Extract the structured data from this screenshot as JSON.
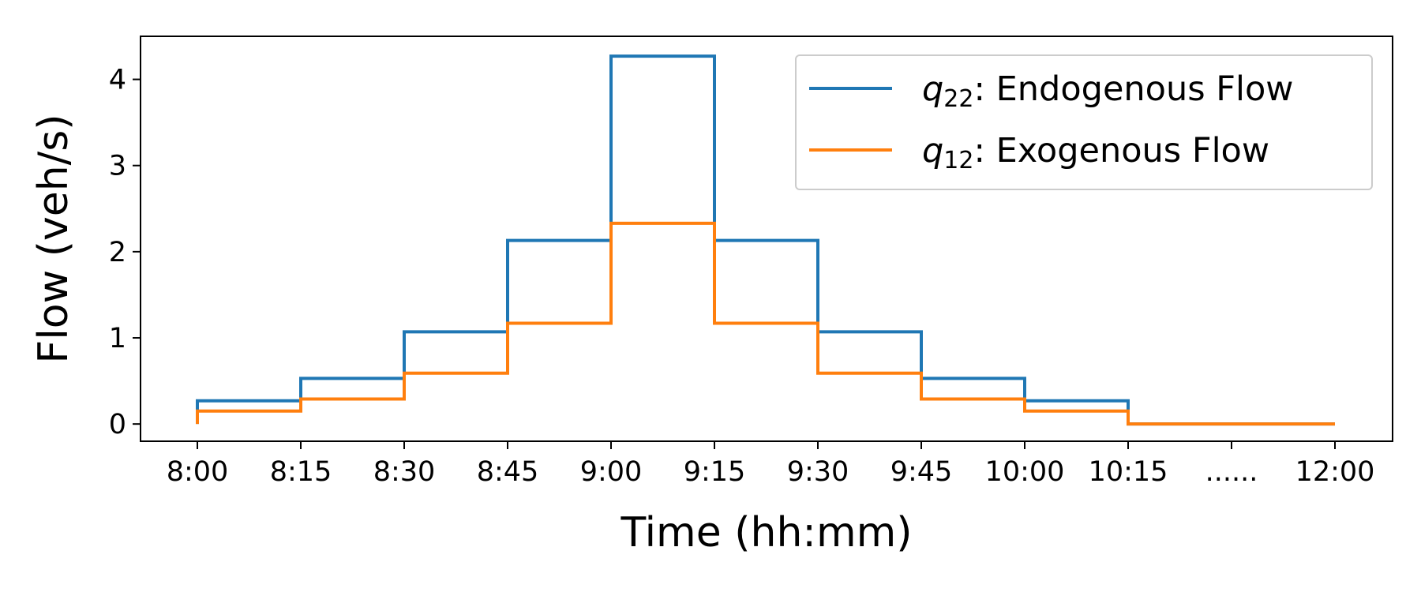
{
  "chart_data": {
    "type": "line",
    "step": "post",
    "xlabel": "Time (hh:mm)",
    "ylabel": "Flow (veh/s)",
    "ylim": [
      -0.2,
      4.5
    ],
    "yticks": [
      0,
      1,
      2,
      3,
      4
    ],
    "x_tick_labels": [
      "8:00",
      "8:15",
      "8:30",
      "8:45",
      "9:00",
      "9:15",
      "9:30",
      "9:45",
      "10:00",
      "10:15",
      "......",
      "12:00"
    ],
    "legend_position": "upper right",
    "grid": false,
    "series": [
      {
        "name": "q22: Endogenous Flow",
        "legend_symbol": "q",
        "legend_subscript": "22",
        "legend_text": ": Endogenous Flow",
        "color": "#1f77b4",
        "values": [
          0.27,
          0.53,
          1.07,
          2.13,
          4.27,
          2.13,
          1.07,
          0.53,
          0.27,
          0,
          0
        ]
      },
      {
        "name": "q12: Exogenous Flow",
        "legend_symbol": "q",
        "legend_subscript": "12",
        "legend_text": ": Exogenous Flow",
        "color": "#ff7f0e",
        "values": [
          0.15,
          0.29,
          0.59,
          1.17,
          2.33,
          1.17,
          0.59,
          0.29,
          0.15,
          0,
          0
        ]
      }
    ]
  }
}
